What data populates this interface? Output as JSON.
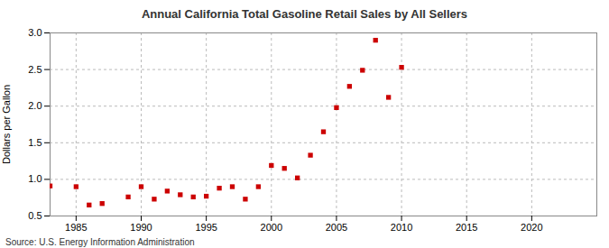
{
  "chart_data": {
    "type": "scatter",
    "title": "Annual California Total Gasoline Retail Sales by All Sellers",
    "y_label": "Dollars per Gallon",
    "source": "Source: U.S. Energy Information Administration",
    "x": [
      1983,
      1985,
      1986,
      1987,
      1989,
      1990,
      1991,
      1992,
      1993,
      1994,
      1995,
      1996,
      1997,
      1998,
      1999,
      2000,
      2001,
      2002,
      2003,
      2004,
      2005,
      2006,
      2007,
      2008,
      2009,
      2010
    ],
    "values": [
      0.91,
      0.9,
      0.65,
      0.67,
      0.76,
      0.9,
      0.73,
      0.84,
      0.79,
      0.76,
      0.77,
      0.88,
      0.9,
      0.73,
      0.9,
      1.19,
      1.15,
      1.02,
      1.33,
      1.65,
      1.98,
      2.27,
      2.49,
      2.9,
      2.12,
      2.53
    ],
    "color": "#cc0000",
    "marker": "square",
    "xlim": [
      1983,
      2025
    ],
    "xticks": [
      1985,
      1990,
      1995,
      2000,
      2005,
      2010,
      2015,
      2020
    ],
    "ylim": [
      0.5,
      3.0
    ],
    "yticks": [
      {
        "value": 0.5,
        "label": "0.5"
      },
      {
        "value": 1.0,
        "label": "1.0"
      },
      {
        "value": 1.5,
        "label": "1.5"
      },
      {
        "value": 2.0,
        "label": "2.0"
      },
      {
        "value": 2.5,
        "label": "2.5"
      },
      {
        "value": 3.0,
        "label": "3.0"
      }
    ],
    "grid": true
  }
}
